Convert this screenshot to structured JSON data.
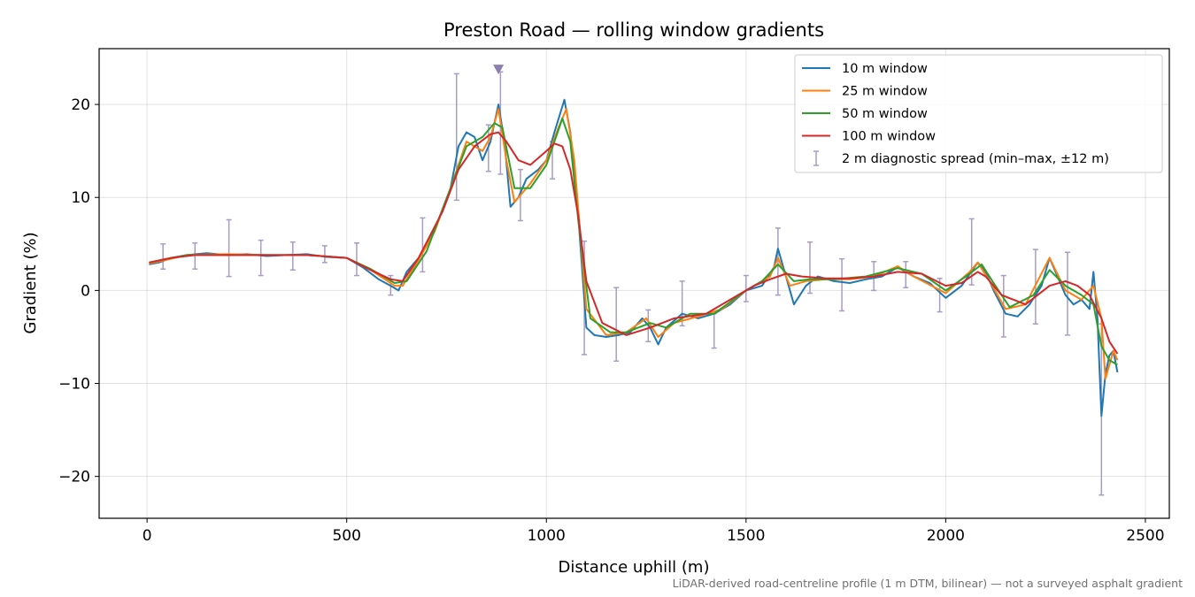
{
  "chart_data": {
    "type": "line",
    "title": "Preston Road — rolling window gradients",
    "xlabel": "Distance uphill (m)",
    "ylabel": "Gradient (%)",
    "xlim": [
      -120,
      2560
    ],
    "ylim": [
      -24.5,
      26
    ],
    "x_ticks": [
      0,
      500,
      1000,
      1500,
      2000,
      2500
    ],
    "x_tick_labels": [
      "0",
      "500",
      "1000",
      "1500",
      "2000",
      "2500"
    ],
    "y_ticks": [
      -20,
      -10,
      0,
      10,
      20
    ],
    "y_tick_labels": [
      "−20",
      "−10",
      "0",
      "10",
      "20"
    ],
    "grid": true,
    "legend_position": "top-right",
    "footnote": "LiDAR-derived road-centreline profile (1 m DTM, bilinear) — not a surveyed asphalt gradient",
    "peak_marker": {
      "x": 880,
      "y": 23.8,
      "color": "#8c7fb0"
    },
    "series": [
      {
        "name": "10 m window",
        "color": "#1f77b4",
        "x": [
          5,
          30,
          60,
          100,
          150,
          200,
          250,
          300,
          350,
          400,
          450,
          500,
          540,
          580,
          610,
          630,
          650,
          680,
          720,
          760,
          780,
          800,
          820,
          840,
          860,
          880,
          895,
          910,
          930,
          950,
          980,
          1000,
          1020,
          1045,
          1060,
          1080,
          1100,
          1120,
          1150,
          1180,
          1210,
          1240,
          1260,
          1280,
          1300,
          1340,
          1380,
          1420,
          1460,
          1500,
          1540,
          1570,
          1580,
          1600,
          1620,
          1650,
          1680,
          1720,
          1760,
          1800,
          1840,
          1880,
          1920,
          1960,
          2000,
          2040,
          2080,
          2100,
          2120,
          2150,
          2180,
          2210,
          2240,
          2260,
          2280,
          2300,
          2320,
          2340,
          2360,
          2370,
          2380,
          2390,
          2400,
          2410,
          2420,
          2430
        ],
        "y": [
          2.8,
          3.0,
          3.5,
          3.8,
          4.0,
          3.8,
          3.9,
          3.7,
          3.8,
          3.9,
          3.6,
          3.5,
          2.5,
          1.2,
          0.5,
          0.0,
          2.0,
          3.5,
          6.5,
          11.0,
          15.5,
          17.0,
          16.5,
          14.0,
          16.0,
          20.0,
          16.0,
          9.0,
          10.0,
          12.0,
          13.0,
          14.0,
          17.0,
          20.5,
          17.0,
          8.0,
          -4.0,
          -4.8,
          -5.0,
          -4.8,
          -4.5,
          -3.0,
          -4.0,
          -5.8,
          -4.0,
          -2.5,
          -3.0,
          -2.5,
          -1.5,
          0.0,
          0.5,
          2.5,
          4.5,
          1.5,
          -1.5,
          0.5,
          1.5,
          1.0,
          0.8,
          1.2,
          1.5,
          2.5,
          1.5,
          0.8,
          -0.8,
          0.5,
          3.0,
          2.0,
          0.0,
          -2.5,
          -2.8,
          -1.5,
          0.5,
          3.5,
          1.5,
          -0.5,
          -1.5,
          -1.0,
          -2.0,
          2.0,
          -3.0,
          -13.5,
          -9.0,
          -7.0,
          -6.5,
          -8.8
        ]
      },
      {
        "name": "25 m window",
        "color": "#ff7f0e",
        "x": [
          5,
          40,
          100,
          200,
          300,
          400,
          500,
          560,
          620,
          640,
          680,
          720,
          760,
          800,
          840,
          860,
          880,
          900,
          920,
          960,
          1000,
          1030,
          1050,
          1070,
          1100,
          1150,
          1200,
          1250,
          1280,
          1320,
          1380,
          1440,
          1500,
          1560,
          1580,
          1610,
          1650,
          1700,
          1760,
          1820,
          1880,
          1920,
          2000,
          2060,
          2080,
          2110,
          2150,
          2200,
          2260,
          2300,
          2340,
          2370,
          2390,
          2400,
          2420,
          2430
        ],
        "y": [
          2.9,
          3.2,
          3.8,
          3.9,
          3.8,
          3.8,
          3.5,
          2.2,
          0.5,
          0.5,
          3.3,
          6.3,
          11.0,
          16.0,
          15.0,
          16.5,
          19.5,
          14.0,
          9.5,
          11.5,
          14.0,
          17.5,
          19.5,
          14.0,
          -2.0,
          -4.8,
          -4.5,
          -3.0,
          -5.0,
          -3.5,
          -2.8,
          -2.0,
          0.0,
          1.5,
          3.5,
          0.5,
          1.0,
          1.2,
          1.2,
          1.5,
          2.6,
          1.5,
          -0.3,
          2.0,
          3.0,
          1.0,
          -2.0,
          -1.5,
          3.5,
          0.0,
          -1.0,
          0.5,
          -3.0,
          -9.5,
          -6.5,
          -7.5
        ]
      },
      {
        "name": "50 m window",
        "color": "#2ca02c",
        "x": [
          5,
          50,
          100,
          200,
          300,
          400,
          500,
          560,
          620,
          650,
          700,
          760,
          800,
          840,
          870,
          890,
          920,
          960,
          1000,
          1040,
          1060,
          1080,
          1110,
          1160,
          1200,
          1260,
          1300,
          1360,
          1420,
          1500,
          1540,
          1580,
          1620,
          1660,
          1720,
          1800,
          1880,
          1940,
          2000,
          2060,
          2090,
          2120,
          2160,
          2220,
          2260,
          2300,
          2340,
          2370,
          2390,
          2410,
          2430
        ],
        "y": [
          3.0,
          3.4,
          3.8,
          3.8,
          3.8,
          3.8,
          3.5,
          2.3,
          0.8,
          1.0,
          4.2,
          11.0,
          15.5,
          16.5,
          18.0,
          17.5,
          11.0,
          11.0,
          13.5,
          18.5,
          16.0,
          7.5,
          -3.0,
          -4.5,
          -4.5,
          -3.5,
          -4.0,
          -2.5,
          -2.5,
          0.0,
          1.0,
          2.8,
          1.0,
          1.2,
          1.2,
          1.5,
          2.4,
          1.8,
          0.0,
          1.8,
          2.8,
          0.8,
          -1.8,
          -0.5,
          2.2,
          0.5,
          -0.5,
          -1.5,
          -6.0,
          -7.5,
          -8.0
        ]
      },
      {
        "name": "100 m window",
        "color": "#d62728",
        "x": [
          5,
          60,
          120,
          200,
          300,
          400,
          500,
          560,
          610,
          640,
          680,
          740,
          780,
          820,
          860,
          880,
          900,
          930,
          960,
          1000,
          1020,
          1040,
          1060,
          1080,
          1100,
          1140,
          1200,
          1260,
          1320,
          1400,
          1460,
          1520,
          1560,
          1600,
          1640,
          1700,
          1760,
          1820,
          1880,
          1940,
          2000,
          2040,
          2080,
          2100,
          2140,
          2200,
          2260,
          2300,
          2330,
          2360,
          2390,
          2410,
          2430
        ],
        "y": [
          3.0,
          3.5,
          3.8,
          3.8,
          3.8,
          3.8,
          3.5,
          2.2,
          1.2,
          1.0,
          3.5,
          8.5,
          13.0,
          15.5,
          16.8,
          17.0,
          16.0,
          14.0,
          13.5,
          15.0,
          15.8,
          15.5,
          13.0,
          8.0,
          1.0,
          -3.5,
          -4.8,
          -4.0,
          -3.0,
          -2.5,
          -1.0,
          0.5,
          1.2,
          1.8,
          1.5,
          1.3,
          1.3,
          1.5,
          2.0,
          1.8,
          0.5,
          0.8,
          2.0,
          1.5,
          -0.5,
          -1.5,
          0.5,
          1.0,
          0.5,
          -0.5,
          -3.0,
          -5.5,
          -6.8
        ]
      },
      {
        "name": "2 m diagnostic spread (min–max, ±12 m)",
        "type": "errorbar",
        "color": "#a99cc4",
        "points": [
          {
            "x": 40,
            "low": 2.3,
            "high": 5.0
          },
          {
            "x": 120,
            "low": 2.3,
            "high": 5.1
          },
          {
            "x": 205,
            "low": 1.5,
            "high": 7.6
          },
          {
            "x": 285,
            "low": 1.6,
            "high": 5.4
          },
          {
            "x": 365,
            "low": 2.2,
            "high": 5.2
          },
          {
            "x": 445,
            "low": 3.0,
            "high": 4.8
          },
          {
            "x": 525,
            "low": 1.6,
            "high": 5.1
          },
          {
            "x": 610,
            "low": -0.5,
            "high": 1.6
          },
          {
            "x": 690,
            "low": 2.0,
            "high": 7.8
          },
          {
            "x": 775,
            "low": 9.7,
            "high": 23.3
          },
          {
            "x": 855,
            "low": 12.8,
            "high": 17.8
          },
          {
            "x": 885,
            "low": 12.5,
            "high": 23.5
          },
          {
            "x": 935,
            "low": 7.5,
            "high": 13.0
          },
          {
            "x": 1015,
            "low": 12.0,
            "high": 16.0
          },
          {
            "x": 1095,
            "low": -6.9,
            "high": 5.3
          },
          {
            "x": 1175,
            "low": -7.6,
            "high": 0.3
          },
          {
            "x": 1255,
            "low": -5.5,
            "high": -2.1
          },
          {
            "x": 1340,
            "low": -3.8,
            "high": 1.0
          },
          {
            "x": 1420,
            "low": -6.2,
            "high": -2.5
          },
          {
            "x": 1500,
            "low": -1.2,
            "high": 1.6
          },
          {
            "x": 1580,
            "low": -0.5,
            "high": 6.7
          },
          {
            "x": 1660,
            "low": -0.3,
            "high": 5.2
          },
          {
            "x": 1740,
            "low": -2.2,
            "high": 3.4
          },
          {
            "x": 1820,
            "low": 0.0,
            "high": 3.1
          },
          {
            "x": 1900,
            "low": 0.3,
            "high": 3.1
          },
          {
            "x": 1985,
            "low": -2.3,
            "high": 1.3
          },
          {
            "x": 2065,
            "low": 0.6,
            "high": 7.7
          },
          {
            "x": 2145,
            "low": -5.0,
            "high": 1.6
          },
          {
            "x": 2225,
            "low": -3.6,
            "high": 4.4
          },
          {
            "x": 2305,
            "low": -4.8,
            "high": 4.1
          },
          {
            "x": 2390,
            "low": -22.0,
            "high": -3.6
          }
        ]
      }
    ]
  }
}
